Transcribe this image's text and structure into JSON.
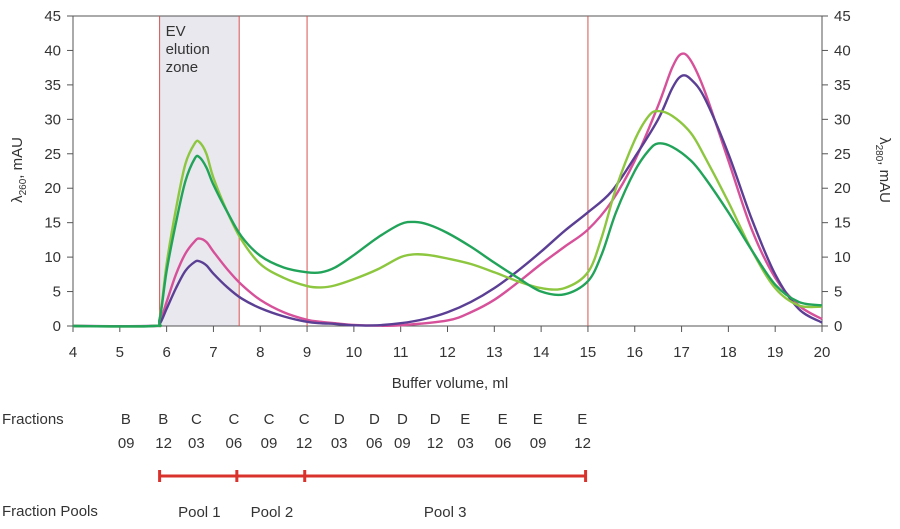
{
  "chart_data": {
    "type": "line",
    "xlabel": "Buffer volume, ml",
    "ylabel_left_main": "λ",
    "ylabel_left_sub": "260",
    "ylabel_left_unit": ", mAU",
    "ylabel_right_main": "λ",
    "ylabel_right_sub": "280",
    "ylabel_right_unit": ", mAU",
    "xlim": [
      4,
      20
    ],
    "ylim": [
      0,
      45
    ],
    "x_ticks": [
      4,
      5,
      6,
      7,
      8,
      9,
      10,
      11,
      12,
      13,
      14,
      15,
      16,
      17,
      18,
      19,
      20
    ],
    "y_ticks": [
      0,
      5,
      10,
      15,
      20,
      25,
      30,
      35,
      40,
      45
    ],
    "shaded_zone": {
      "x_start": 5.85,
      "x_end": 7.55,
      "label_lines": [
        "EV",
        "elution",
        "zone"
      ],
      "color": "#e8e8ee"
    },
    "vertical_lines": [
      5.85,
      7.55,
      9.0,
      15.0
    ],
    "vline_color": "#d9534f",
    "series": [
      {
        "color": "#d6519a",
        "points": [
          [
            4,
            0
          ],
          [
            5.7,
            0
          ],
          [
            5.85,
            0.5
          ],
          [
            6.0,
            3.5
          ],
          [
            6.2,
            7.5
          ],
          [
            6.4,
            10.5
          ],
          [
            6.6,
            12.3
          ],
          [
            6.7,
            12.7
          ],
          [
            6.85,
            12.2
          ],
          [
            7.0,
            10.8
          ],
          [
            7.3,
            8.2
          ],
          [
            7.6,
            6.0
          ],
          [
            8.0,
            3.8
          ],
          [
            8.5,
            2.0
          ],
          [
            9.0,
            0.9
          ],
          [
            9.3,
            0.6
          ],
          [
            9.6,
            0.4
          ],
          [
            10.0,
            0.15
          ],
          [
            10.5,
            0.05
          ],
          [
            11,
            0.1
          ],
          [
            12,
            0.8
          ],
          [
            12.5,
            2.0
          ],
          [
            13,
            3.8
          ],
          [
            13.5,
            6.3
          ],
          [
            14,
            9.0
          ],
          [
            14.5,
            11.5
          ],
          [
            15,
            14.0
          ],
          [
            15.5,
            18.0
          ],
          [
            16,
            24.0
          ],
          [
            16.5,
            32.0
          ],
          [
            16.8,
            37.5
          ],
          [
            17,
            39.5
          ],
          [
            17.2,
            38.5
          ],
          [
            17.5,
            34.0
          ],
          [
            18,
            24.0
          ],
          [
            18.5,
            14.0
          ],
          [
            19,
            7.0
          ],
          [
            19.5,
            3.0
          ],
          [
            20,
            1.0
          ]
        ]
      },
      {
        "color": "#5b3f94",
        "points": [
          [
            4,
            0
          ],
          [
            5.7,
            0
          ],
          [
            5.85,
            0.3
          ],
          [
            6.0,
            2.5
          ],
          [
            6.2,
            5.5
          ],
          [
            6.4,
            8.0
          ],
          [
            6.6,
            9.3
          ],
          [
            6.7,
            9.4
          ],
          [
            6.85,
            8.8
          ],
          [
            7.0,
            7.6
          ],
          [
            7.3,
            5.6
          ],
          [
            7.6,
            4.0
          ],
          [
            8.0,
            2.6
          ],
          [
            8.5,
            1.4
          ],
          [
            9.0,
            0.6
          ],
          [
            9.3,
            0.4
          ],
          [
            9.6,
            0.3
          ],
          [
            10.0,
            0.1
          ],
          [
            10.5,
            0.1
          ],
          [
            11,
            0.4
          ],
          [
            11.5,
            1.0
          ],
          [
            12,
            2.0
          ],
          [
            12.5,
            3.5
          ],
          [
            13,
            5.5
          ],
          [
            13.5,
            8.0
          ],
          [
            14,
            10.8
          ],
          [
            14.5,
            13.8
          ],
          [
            15,
            16.5
          ],
          [
            15.5,
            19.5
          ],
          [
            16,
            24.5
          ],
          [
            16.5,
            30.0
          ],
          [
            16.8,
            34.5
          ],
          [
            17,
            36.3
          ],
          [
            17.2,
            35.8
          ],
          [
            17.5,
            33.0
          ],
          [
            18,
            25.0
          ],
          [
            18.5,
            15.5
          ],
          [
            19,
            7.5
          ],
          [
            19.5,
            2.5
          ],
          [
            20,
            0.5
          ]
        ]
      },
      {
        "color": "#8dc63f",
        "points": [
          [
            4,
            0
          ],
          [
            5.7,
            0
          ],
          [
            5.85,
            1.0
          ],
          [
            6.0,
            9.0
          ],
          [
            6.2,
            17.0
          ],
          [
            6.4,
            23.5
          ],
          [
            6.6,
            26.5
          ],
          [
            6.7,
            26.7
          ],
          [
            6.85,
            25.0
          ],
          [
            7.0,
            21.5
          ],
          [
            7.3,
            16.5
          ],
          [
            7.6,
            12.5
          ],
          [
            8.0,
            9.0
          ],
          [
            8.5,
            7.0
          ],
          [
            9.0,
            5.8
          ],
          [
            9.3,
            5.6
          ],
          [
            9.6,
            5.9
          ],
          [
            10.0,
            6.8
          ],
          [
            10.5,
            8.2
          ],
          [
            11,
            10.0
          ],
          [
            11.3,
            10.4
          ],
          [
            11.6,
            10.3
          ],
          [
            12,
            9.8
          ],
          [
            12.5,
            9.0
          ],
          [
            13,
            7.8
          ],
          [
            13.5,
            6.5
          ],
          [
            14,
            5.5
          ],
          [
            14.5,
            5.5
          ],
          [
            15,
            7.8
          ],
          [
            15.3,
            13.0
          ],
          [
            15.6,
            20.0
          ],
          [
            16,
            27.0
          ],
          [
            16.3,
            30.5
          ],
          [
            16.5,
            31.2
          ],
          [
            16.8,
            30.5
          ],
          [
            17.2,
            28.0
          ],
          [
            17.5,
            24.5
          ],
          [
            18,
            18.0
          ],
          [
            18.5,
            11.0
          ],
          [
            19,
            5.5
          ],
          [
            19.5,
            3.0
          ],
          [
            20,
            2.8
          ]
        ]
      },
      {
        "color": "#22a35a",
        "points": [
          [
            4,
            0
          ],
          [
            5.7,
            0
          ],
          [
            5.85,
            1.0
          ],
          [
            6.0,
            8.0
          ],
          [
            6.2,
            15.0
          ],
          [
            6.4,
            21.0
          ],
          [
            6.6,
            24.3
          ],
          [
            6.7,
            24.5
          ],
          [
            6.85,
            23.0
          ],
          [
            7.0,
            20.5
          ],
          [
            7.3,
            16.5
          ],
          [
            7.6,
            13.0
          ],
          [
            8.0,
            10.2
          ],
          [
            8.5,
            8.5
          ],
          [
            9.0,
            7.8
          ],
          [
            9.3,
            7.8
          ],
          [
            9.6,
            8.5
          ],
          [
            10.0,
            10.3
          ],
          [
            10.5,
            12.8
          ],
          [
            11,
            14.8
          ],
          [
            11.3,
            15.1
          ],
          [
            11.6,
            14.7
          ],
          [
            12,
            13.5
          ],
          [
            12.5,
            11.5
          ],
          [
            13,
            9.2
          ],
          [
            13.5,
            7.0
          ],
          [
            14,
            5.0
          ],
          [
            14.5,
            4.6
          ],
          [
            15,
            6.5
          ],
          [
            15.3,
            10.5
          ],
          [
            15.6,
            16.5
          ],
          [
            16,
            22.5
          ],
          [
            16.3,
            25.5
          ],
          [
            16.5,
            26.5
          ],
          [
            16.8,
            26.0
          ],
          [
            17.2,
            24.0
          ],
          [
            17.5,
            21.5
          ],
          [
            18,
            16.5
          ],
          [
            18.5,
            11.0
          ],
          [
            19,
            6.0
          ],
          [
            19.5,
            3.5
          ],
          [
            20,
            3.0
          ]
        ]
      }
    ]
  },
  "fractions": {
    "label": "Fractions",
    "items": [
      {
        "x": 5.15,
        "top": "B",
        "bottom": "09"
      },
      {
        "x": 5.95,
        "top": "B",
        "bottom": "12"
      },
      {
        "x": 6.65,
        "top": "C",
        "bottom": "03"
      },
      {
        "x": 7.45,
        "top": "C",
        "bottom": "06"
      },
      {
        "x": 8.2,
        "top": "C",
        "bottom": "09"
      },
      {
        "x": 8.95,
        "top": "C",
        "bottom": "12"
      },
      {
        "x": 9.7,
        "top": "D",
        "bottom": "03"
      },
      {
        "x": 10.45,
        "top": "D",
        "bottom": "06"
      },
      {
        "x": 11.05,
        "top": "D",
        "bottom": "09"
      },
      {
        "x": 11.75,
        "top": "D",
        "bottom": "12"
      },
      {
        "x": 12.4,
        "top": "E",
        "bottom": "03"
      },
      {
        "x": 13.2,
        "top": "E",
        "bottom": "06"
      },
      {
        "x": 13.95,
        "top": "E",
        "bottom": "09"
      },
      {
        "x": 14.9,
        "top": "E",
        "bottom": "12"
      }
    ]
  },
  "pools": {
    "label": "Fraction Pools",
    "bar_color": "#d9312b",
    "boundaries": [
      5.85,
      7.5,
      8.95,
      14.95
    ],
    "items": [
      {
        "label": "Pool 1",
        "x_center": 6.7
      },
      {
        "label": "Pool 2",
        "x_center": 8.25
      },
      {
        "label": "Pool 3",
        "x_center": 11.95
      }
    ]
  }
}
